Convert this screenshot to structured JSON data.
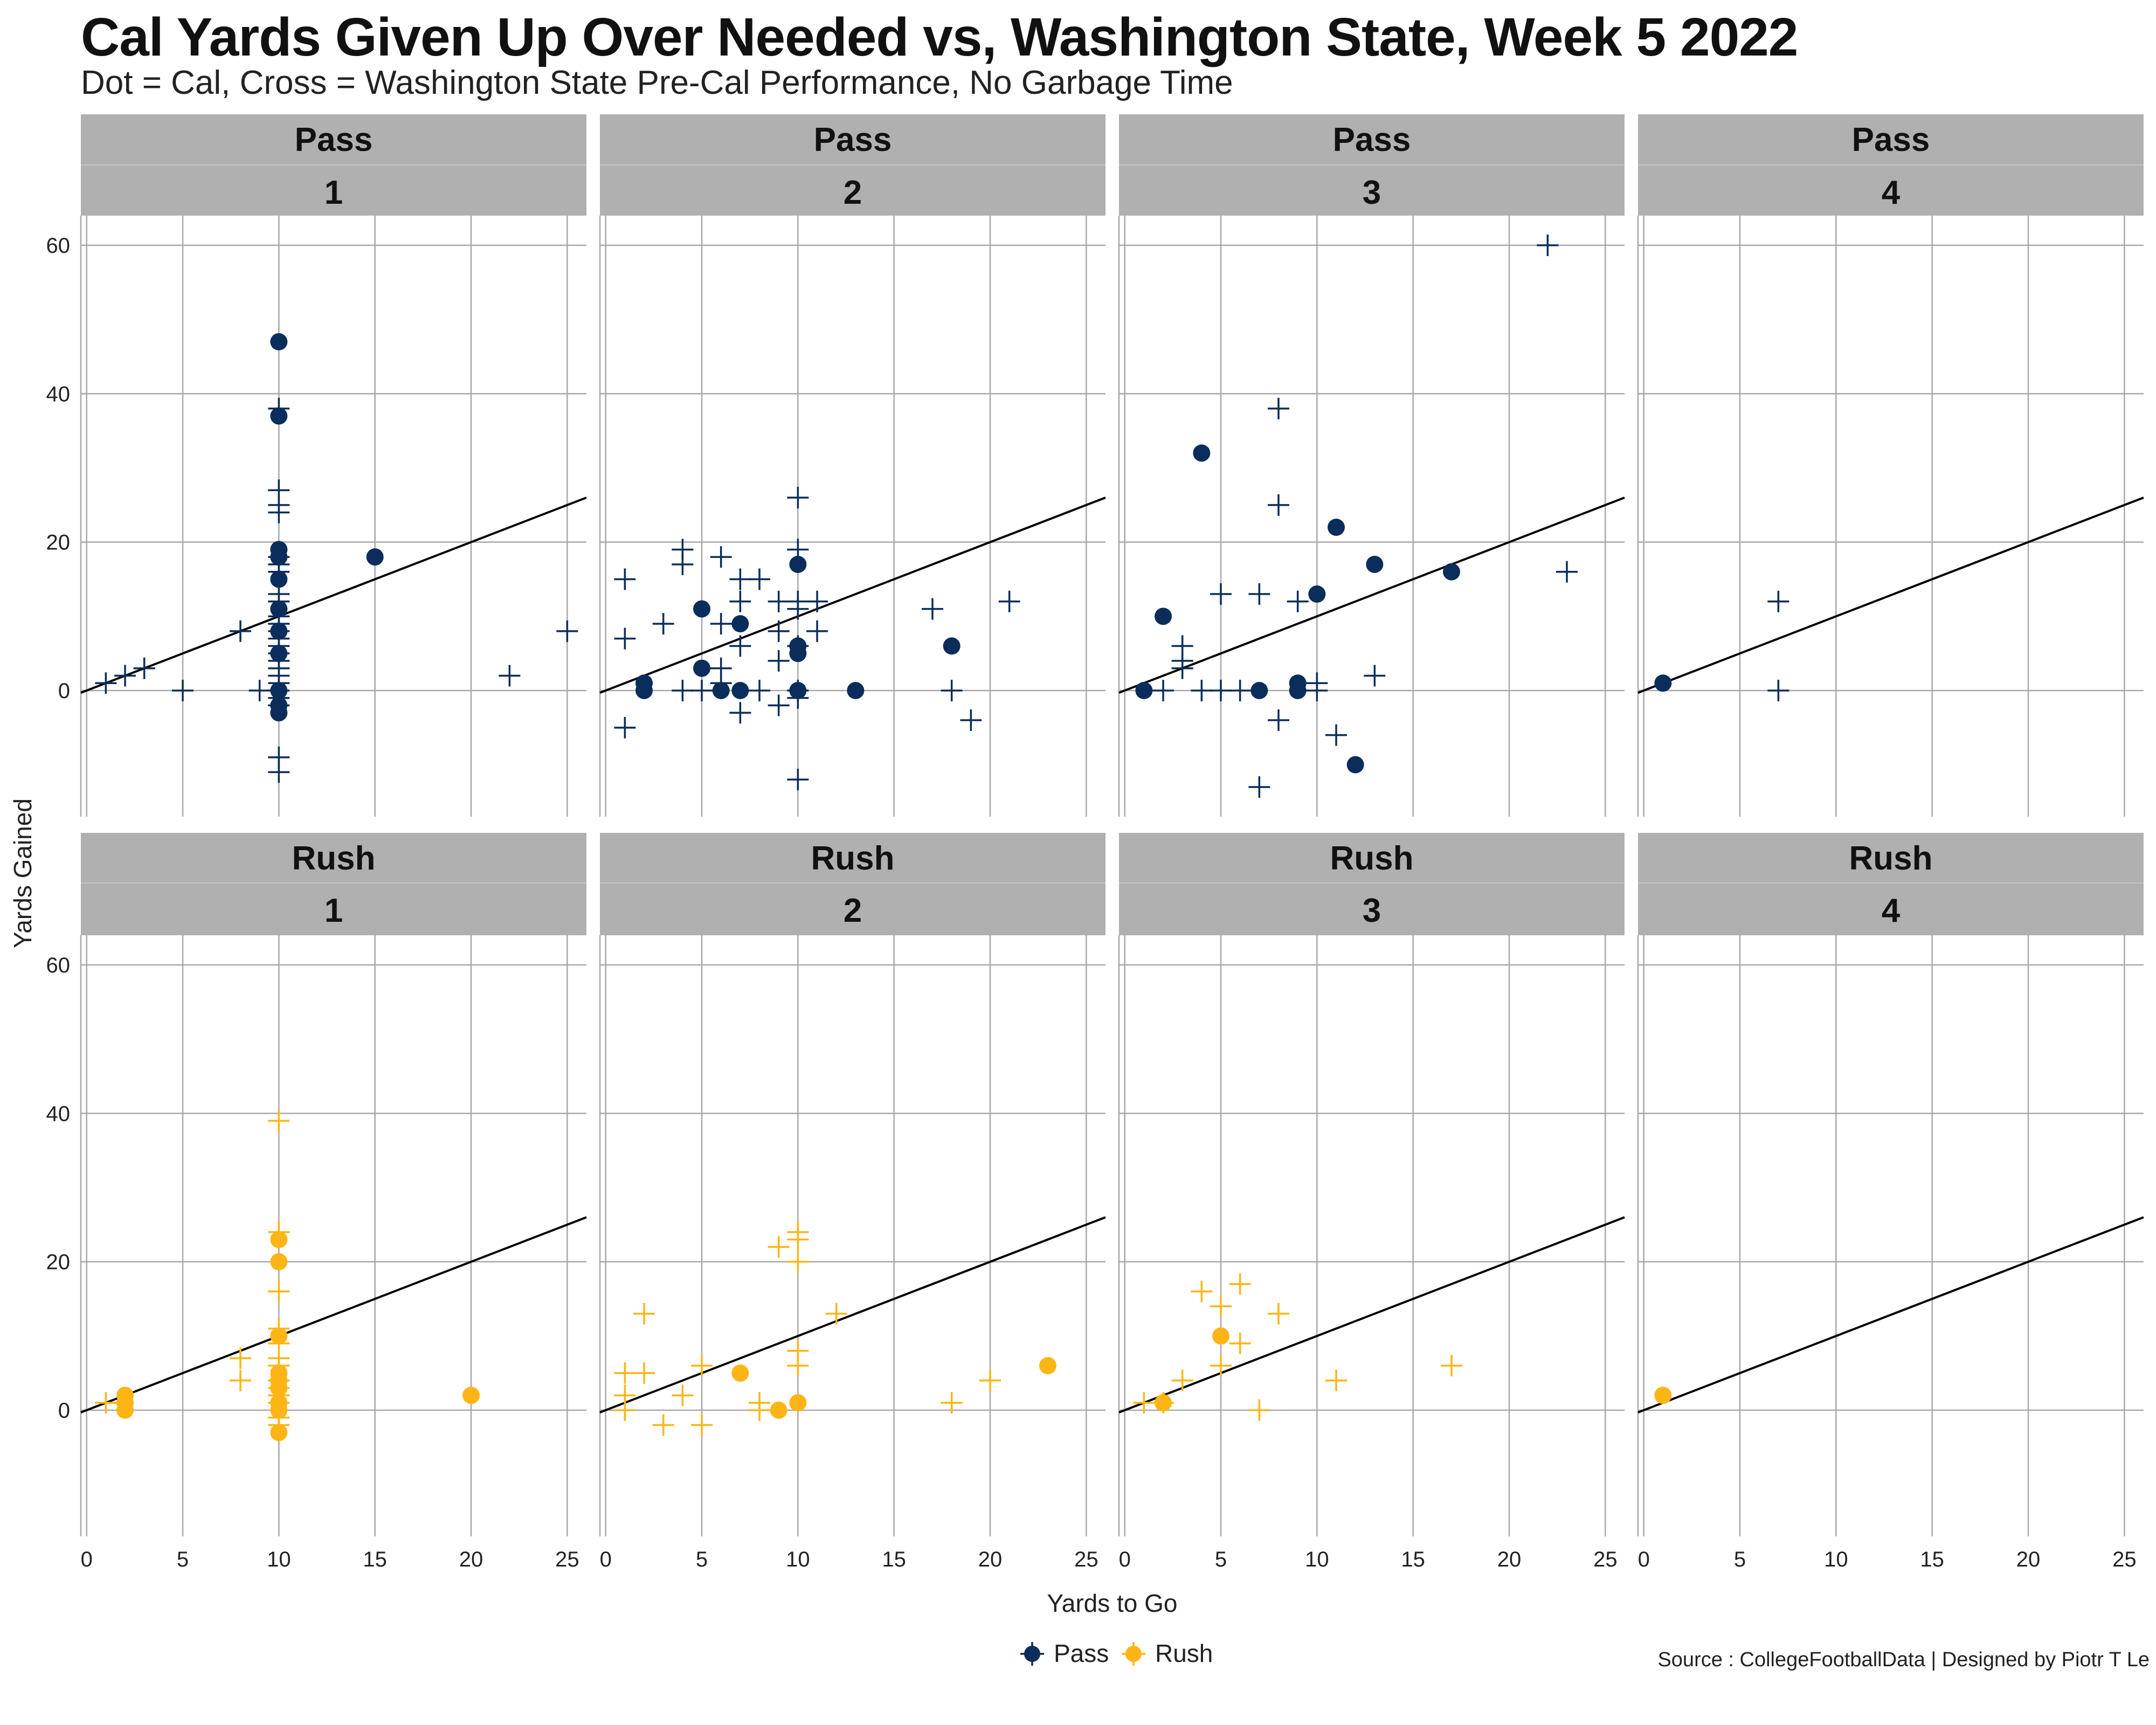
{
  "title": "Cal Yards Given Up Over Needed vs, Washington State, Week 5 2022",
  "subtitle": "Dot = Cal, Cross = Washington State Pre-Cal Performance, No Garbage Time",
  "source": "Source : CollegeFootballData | Designed by Piotr T Le",
  "colors": {
    "pass": "#0b2d5b",
    "rush": "#fdb515",
    "strip": "#b0b0b0",
    "grid": "#a8a8a8",
    "text": "#222222"
  },
  "chart_data": {
    "type": "scatter",
    "xlabel": "Yards to Go",
    "ylabel": "Yards Gained",
    "xlim": [
      -0.3,
      26
    ],
    "ylim": [
      -17,
      64
    ],
    "xticks": [
      0,
      5,
      10,
      15,
      20,
      25
    ],
    "yticks": [
      0,
      20,
      40,
      60
    ],
    "grid": true,
    "reference_line": "y = x",
    "legend": {
      "position": "bottom",
      "entries": [
        "Pass",
        "Rush"
      ]
    },
    "panels": [
      {
        "play_type": "Pass",
        "down": "1",
        "cal": [
          [
            10,
            47
          ],
          [
            10,
            37
          ],
          [
            10,
            19
          ],
          [
            10,
            18
          ],
          [
            10,
            15
          ],
          [
            10,
            11
          ],
          [
            10,
            8
          ],
          [
            10,
            5
          ],
          [
            10,
            0
          ],
          [
            10,
            -2
          ],
          [
            10,
            -3
          ],
          [
            15,
            18
          ]
        ],
        "wsu": [
          [
            1,
            1
          ],
          [
            2,
            2
          ],
          [
            3,
            3
          ],
          [
            5,
            0
          ],
          [
            8,
            8
          ],
          [
            9,
            0
          ],
          [
            10,
            38
          ],
          [
            10,
            27
          ],
          [
            10,
            25
          ],
          [
            10,
            24
          ],
          [
            10,
            18
          ],
          [
            10,
            17
          ],
          [
            10,
            16
          ],
          [
            10,
            13
          ],
          [
            10,
            12
          ],
          [
            10,
            10
          ],
          [
            10,
            9
          ],
          [
            10,
            8
          ],
          [
            10,
            7
          ],
          [
            10,
            6
          ],
          [
            10,
            5
          ],
          [
            10,
            4
          ],
          [
            10,
            3
          ],
          [
            10,
            2
          ],
          [
            10,
            1
          ],
          [
            10,
            0
          ],
          [
            10,
            -1
          ],
          [
            10,
            -2
          ],
          [
            10,
            -9
          ],
          [
            10,
            -11
          ],
          [
            22,
            2
          ],
          [
            25,
            8
          ]
        ]
      },
      {
        "play_type": "Pass",
        "down": "2",
        "cal": [
          [
            2,
            1
          ],
          [
            2,
            0
          ],
          [
            5,
            11
          ],
          [
            5,
            3
          ],
          [
            6,
            0
          ],
          [
            7,
            9
          ],
          [
            7,
            0
          ],
          [
            10,
            17
          ],
          [
            10,
            6
          ],
          [
            10,
            5
          ],
          [
            10,
            0
          ],
          [
            13,
            0
          ],
          [
            18,
            6
          ]
        ],
        "wsu": [
          [
            1,
            15
          ],
          [
            1,
            7
          ],
          [
            1,
            -5
          ],
          [
            3,
            9
          ],
          [
            4,
            19
          ],
          [
            4,
            17
          ],
          [
            4,
            0
          ],
          [
            5,
            0
          ],
          [
            6,
            18
          ],
          [
            6,
            9
          ],
          [
            6,
            3
          ],
          [
            6,
            1
          ],
          [
            7,
            15
          ],
          [
            7,
            12
          ],
          [
            7,
            6
          ],
          [
            7,
            -3
          ],
          [
            8,
            15
          ],
          [
            8,
            0
          ],
          [
            9,
            12
          ],
          [
            9,
            8
          ],
          [
            9,
            4
          ],
          [
            9,
            -2
          ],
          [
            10,
            26
          ],
          [
            10,
            19
          ],
          [
            10,
            12
          ],
          [
            10,
            11
          ],
          [
            10,
            6
          ],
          [
            10,
            0
          ],
          [
            10,
            -1
          ],
          [
            10,
            -12
          ],
          [
            11,
            12
          ],
          [
            11,
            8
          ],
          [
            17,
            11
          ],
          [
            18,
            0
          ],
          [
            19,
            -4
          ],
          [
            21,
            12
          ]
        ]
      },
      {
        "play_type": "Pass",
        "down": "3",
        "cal": [
          [
            1,
            0
          ],
          [
            2,
            10
          ],
          [
            4,
            32
          ],
          [
            7,
            0
          ],
          [
            9,
            1
          ],
          [
            9,
            0
          ],
          [
            10,
            13
          ],
          [
            11,
            22
          ],
          [
            12,
            -10
          ],
          [
            13,
            17
          ],
          [
            17,
            16
          ]
        ],
        "wsu": [
          [
            2,
            0
          ],
          [
            3,
            6
          ],
          [
            3,
            4
          ],
          [
            3,
            3
          ],
          [
            4,
            0
          ],
          [
            5,
            13
          ],
          [
            5,
            0
          ],
          [
            6,
            0
          ],
          [
            7,
            13
          ],
          [
            7,
            -13
          ],
          [
            8,
            38
          ],
          [
            8,
            25
          ],
          [
            8,
            -4
          ],
          [
            9,
            12
          ],
          [
            10,
            1
          ],
          [
            10,
            0
          ],
          [
            11,
            -6
          ],
          [
            13,
            2
          ],
          [
            22,
            60
          ],
          [
            23,
            16
          ]
        ]
      },
      {
        "play_type": "Pass",
        "down": "4",
        "cal": [
          [
            1,
            1
          ]
        ],
        "wsu": [
          [
            7,
            12
          ],
          [
            7,
            0
          ]
        ]
      },
      {
        "play_type": "Rush",
        "down": "1",
        "cal": [
          [
            2,
            2
          ],
          [
            2,
            1
          ],
          [
            2,
            0
          ],
          [
            10,
            23
          ],
          [
            10,
            20
          ],
          [
            10,
            10
          ],
          [
            10,
            5
          ],
          [
            10,
            4
          ],
          [
            10,
            3
          ],
          [
            10,
            1
          ],
          [
            10,
            0
          ],
          [
            10,
            -3
          ],
          [
            20,
            2
          ]
        ],
        "wsu": [
          [
            1,
            1
          ],
          [
            8,
            7
          ],
          [
            8,
            4
          ],
          [
            10,
            39
          ],
          [
            10,
            24
          ],
          [
            10,
            16
          ],
          [
            10,
            11
          ],
          [
            10,
            9
          ],
          [
            10,
            7
          ],
          [
            10,
            6
          ],
          [
            10,
            4
          ],
          [
            10,
            3
          ],
          [
            10,
            2
          ],
          [
            10,
            1
          ],
          [
            10,
            -1
          ],
          [
            10,
            -2
          ]
        ]
      },
      {
        "play_type": "Rush",
        "down": "2",
        "cal": [
          [
            7,
            5
          ],
          [
            9,
            0
          ],
          [
            10,
            1
          ],
          [
            23,
            6
          ]
        ],
        "wsu": [
          [
            1,
            5
          ],
          [
            1,
            2
          ],
          [
            1,
            0
          ],
          [
            2,
            13
          ],
          [
            2,
            5
          ],
          [
            3,
            -2
          ],
          [
            4,
            2
          ],
          [
            5,
            6
          ],
          [
            5,
            -2
          ],
          [
            8,
            1
          ],
          [
            8,
            0
          ],
          [
            9,
            22
          ],
          [
            10,
            24
          ],
          [
            10,
            23
          ],
          [
            10,
            20
          ],
          [
            10,
            8
          ],
          [
            10,
            6
          ],
          [
            12,
            13
          ],
          [
            18,
            1
          ],
          [
            20,
            4
          ]
        ]
      },
      {
        "play_type": "Rush",
        "down": "3",
        "cal": [
          [
            2,
            1
          ],
          [
            5,
            10
          ]
        ],
        "wsu": [
          [
            1,
            1
          ],
          [
            2,
            1
          ],
          [
            3,
            4
          ],
          [
            4,
            16
          ],
          [
            5,
            14
          ],
          [
            5,
            6
          ],
          [
            6,
            17
          ],
          [
            6,
            9
          ],
          [
            7,
            0
          ],
          [
            8,
            13
          ],
          [
            11,
            4
          ],
          [
            17,
            6
          ]
        ]
      },
      {
        "play_type": "Rush",
        "down": "4",
        "cal": [
          [
            1,
            2
          ]
        ],
        "wsu": []
      }
    ]
  }
}
